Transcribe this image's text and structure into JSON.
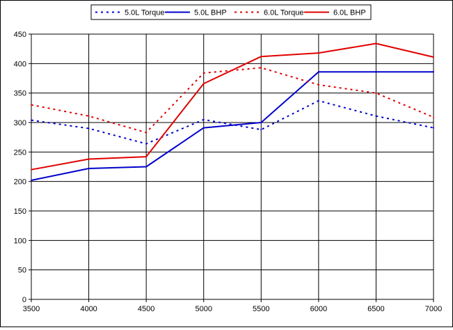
{
  "chart_data": {
    "type": "line",
    "x": [
      3500,
      4000,
      4500,
      5000,
      5500,
      6000,
      6500,
      7000
    ],
    "x_ticks": [
      "3500",
      "4000",
      "4500",
      "5000",
      "5500",
      "6000",
      "6500",
      "7000"
    ],
    "y_ticks": [
      "0",
      "50",
      "100",
      "150",
      "200",
      "250",
      "300",
      "350",
      "400",
      "450"
    ],
    "xlim": [
      3500,
      7000
    ],
    "ylim": [
      0,
      450
    ],
    "grid": true,
    "legend_position": "top",
    "series": [
      {
        "name": "5.0L Torque",
        "values": [
          304,
          290,
          264,
          305,
          288,
          337,
          311,
          291
        ],
        "color": "#0000cc",
        "dashed": true
      },
      {
        "name": "5.0L BHP",
        "values": [
          202,
          222,
          225,
          291,
          300,
          386,
          386,
          386
        ],
        "color": "#0000cc",
        "dashed": false
      },
      {
        "name": "6.0L Torque",
        "values": [
          330,
          311,
          283,
          384,
          393,
          364,
          350,
          309
        ],
        "color": "#e00000",
        "dashed": true
      },
      {
        "name": "6.0L BHP",
        "values": [
          220,
          238,
          242,
          366,
          412,
          418,
          434,
          411
        ],
        "color": "#e00000",
        "dashed": false
      }
    ]
  }
}
